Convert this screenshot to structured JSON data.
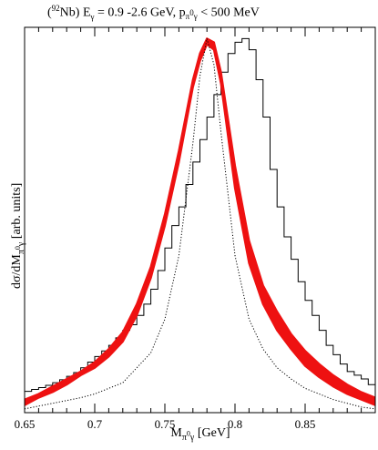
{
  "chart_data": {
    "type": "line",
    "title": {
      "open": "(",
      "nucleus_mass": "92",
      "nucleus_sym": "Nb) E",
      "egamma_sub": "γ",
      "energy_range": " = 0.9 -2.6 GeV,  p",
      "p_sub": "π",
      "p_sub_sup": "0",
      "p_sub_gamma": "γ",
      "cut": " < 500 MeV"
    },
    "ylabel": {
      "main": "dσ/dM",
      "sub": "π",
      "sup": "0",
      "sub2": "γ",
      "units": " [arb. units]"
    },
    "xlabel": {
      "main": "M",
      "sub": "π",
      "sup": "0",
      "sub2": "γ",
      "units": " [GeV]"
    },
    "xlim": [
      0.65,
      0.9
    ],
    "ylim": [
      0,
      1.03
    ],
    "x_ticks": [
      "0.65",
      "0.7",
      "0.75",
      "0.8",
      "0.85"
    ],
    "x_tick_values": [
      0.65,
      0.7,
      0.75,
      0.8,
      0.85
    ],
    "y_ticks_labeled": false,
    "grid": false,
    "series": [
      {
        "style": "histogram",
        "color": "#000000",
        "bin_width": 0.005,
        "bin_edges_start": 0.65,
        "values": [
          0.057,
          0.062,
          0.067,
          0.073,
          0.08,
          0.088,
          0.097,
          0.107,
          0.12,
          0.135,
          0.15,
          0.165,
          0.18,
          0.2,
          0.22,
          0.235,
          0.26,
          0.29,
          0.33,
          0.38,
          0.44,
          0.5,
          0.55,
          0.61,
          0.67,
          0.73,
          0.79,
          0.85,
          0.91,
          0.96,
          0.99,
          1.0,
          0.97,
          0.89,
          0.79,
          0.65,
          0.55,
          0.47,
          0.41,
          0.35,
          0.3,
          0.26,
          0.22,
          0.18,
          0.155,
          0.13,
          0.11,
          0.1,
          0.09,
          0.075,
          0.06,
          0.05,
          0.04,
          0.03,
          0.025,
          0.018
        ]
      },
      {
        "style": "band",
        "color": "#ee1111",
        "x": [
          0.65,
          0.66,
          0.67,
          0.68,
          0.69,
          0.7,
          0.71,
          0.72,
          0.73,
          0.74,
          0.75,
          0.76,
          0.77,
          0.775,
          0.78,
          0.785,
          0.79,
          0.8,
          0.81,
          0.82,
          0.83,
          0.84,
          0.85,
          0.86,
          0.87,
          0.88,
          0.89,
          0.9
        ],
        "y_low": [
          0.02,
          0.04,
          0.055,
          0.075,
          0.1,
          0.12,
          0.15,
          0.19,
          0.26,
          0.36,
          0.5,
          0.67,
          0.87,
          0.94,
          0.985,
          0.97,
          0.88,
          0.6,
          0.4,
          0.29,
          0.22,
          0.17,
          0.125,
          0.095,
          0.07,
          0.05,
          0.035,
          0.02
        ],
        "y_high": [
          0.035,
          0.05,
          0.07,
          0.09,
          0.11,
          0.135,
          0.17,
          0.215,
          0.29,
          0.39,
          0.53,
          0.7,
          0.89,
          0.96,
          1.0,
          0.99,
          0.91,
          0.66,
          0.46,
          0.34,
          0.27,
          0.21,
          0.165,
          0.13,
          0.1,
          0.075,
          0.055,
          0.04
        ]
      },
      {
        "style": "dotted",
        "color": "#000000",
        "x": [
          0.65,
          0.67,
          0.69,
          0.7,
          0.72,
          0.74,
          0.75,
          0.76,
          0.77,
          0.775,
          0.78,
          0.785,
          0.79,
          0.8,
          0.81,
          0.82,
          0.83,
          0.84,
          0.85,
          0.87,
          0.89,
          0.9
        ],
        "y": [
          0.01,
          0.025,
          0.04,
          0.05,
          0.08,
          0.16,
          0.25,
          0.42,
          0.72,
          0.9,
          1.0,
          0.93,
          0.75,
          0.42,
          0.25,
          0.17,
          0.12,
          0.09,
          0.065,
          0.035,
          0.015,
          0.01
        ]
      }
    ]
  }
}
